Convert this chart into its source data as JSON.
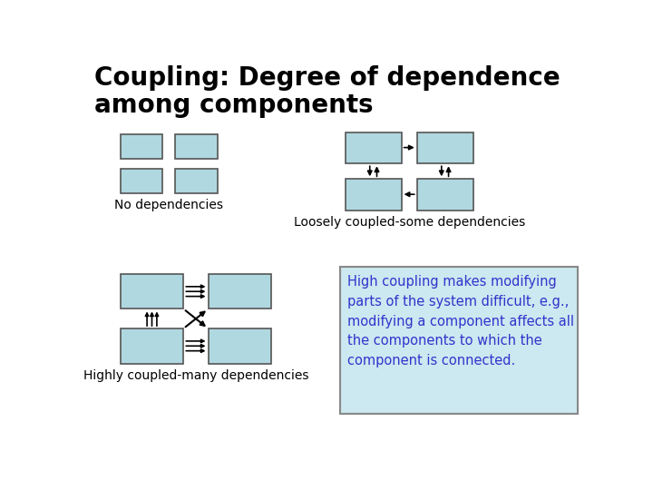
{
  "title_line1": "Coupling: Degree of dependence",
  "title_line2": "among components",
  "title_fontsize": 20,
  "title_color": "#000000",
  "bg_color": "#ffffff",
  "box_fill": "#b0d8e0",
  "box_edge": "#555555",
  "label_no_dep": "No dependencies",
  "label_loosely": "Loosely coupled-some dependencies",
  "label_highly": "Highly coupled-many dependencies",
  "info_text": "High coupling makes modifying\nparts of the system difficult, e.g.,\nmodifying a component affects all\nthe components to which the\ncomponent is connected.",
  "info_text_color": "#3333cc",
  "info_box_fill": "#cce8f0",
  "info_box_edge": "#888888",
  "label_fontsize": 10,
  "info_fontsize": 10.5
}
